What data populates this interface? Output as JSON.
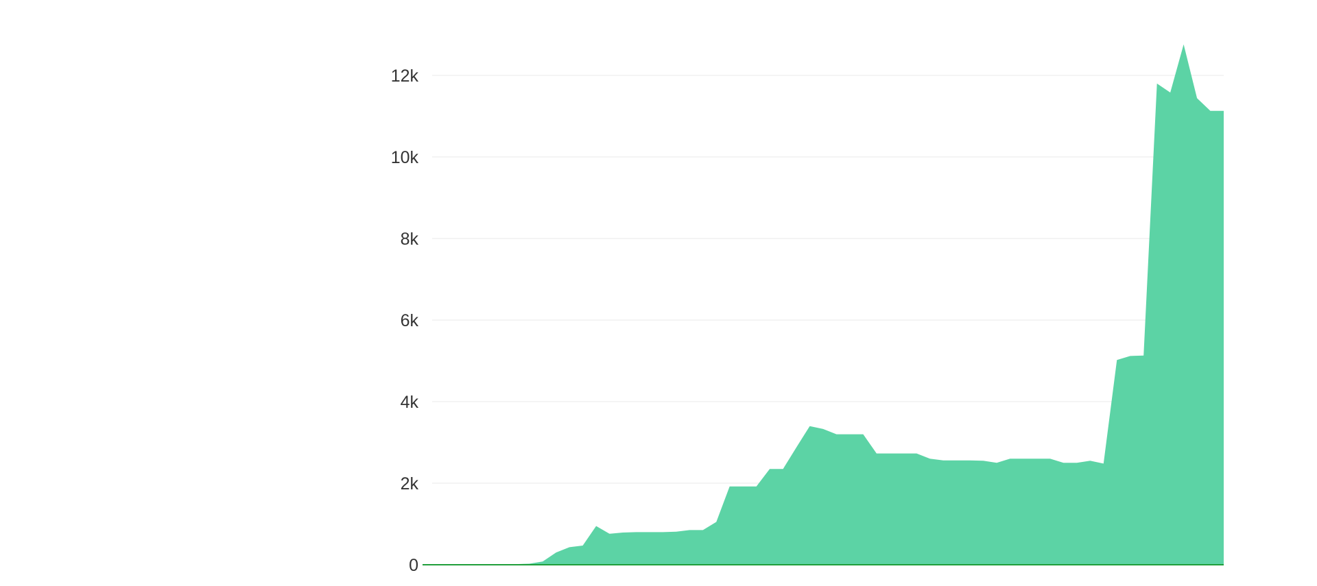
{
  "chart_data": {
    "type": "area",
    "title": "",
    "xlabel": "",
    "ylabel": "",
    "ylim": [
      0,
      12000
    ],
    "yticks": [
      0,
      2000,
      4000,
      6000,
      8000,
      10000,
      12000
    ],
    "ytick_labels": [
      "0",
      "2k",
      "4k",
      "6k",
      "8k",
      "10k",
      "12k"
    ],
    "grid": true,
    "color": "#5cd3a5",
    "baseline_color": "#1f9e3a",
    "values": [
      0,
      0,
      0,
      0,
      0,
      5,
      10,
      15,
      25,
      80,
      300,
      430,
      470,
      950,
      760,
      790,
      800,
      800,
      800,
      810,
      850,
      850,
      1050,
      1920,
      1920,
      1920,
      2350,
      2350,
      2880,
      3400,
      3330,
      3200,
      3200,
      3200,
      2730,
      2730,
      2730,
      2730,
      2600,
      2560,
      2560,
      2560,
      2550,
      2500,
      2600,
      2600,
      2600,
      2600,
      2500,
      2500,
      2550,
      2480,
      5020,
      5120,
      5130,
      11800,
      11580,
      12760,
      11440,
      11130,
      11130
    ]
  }
}
